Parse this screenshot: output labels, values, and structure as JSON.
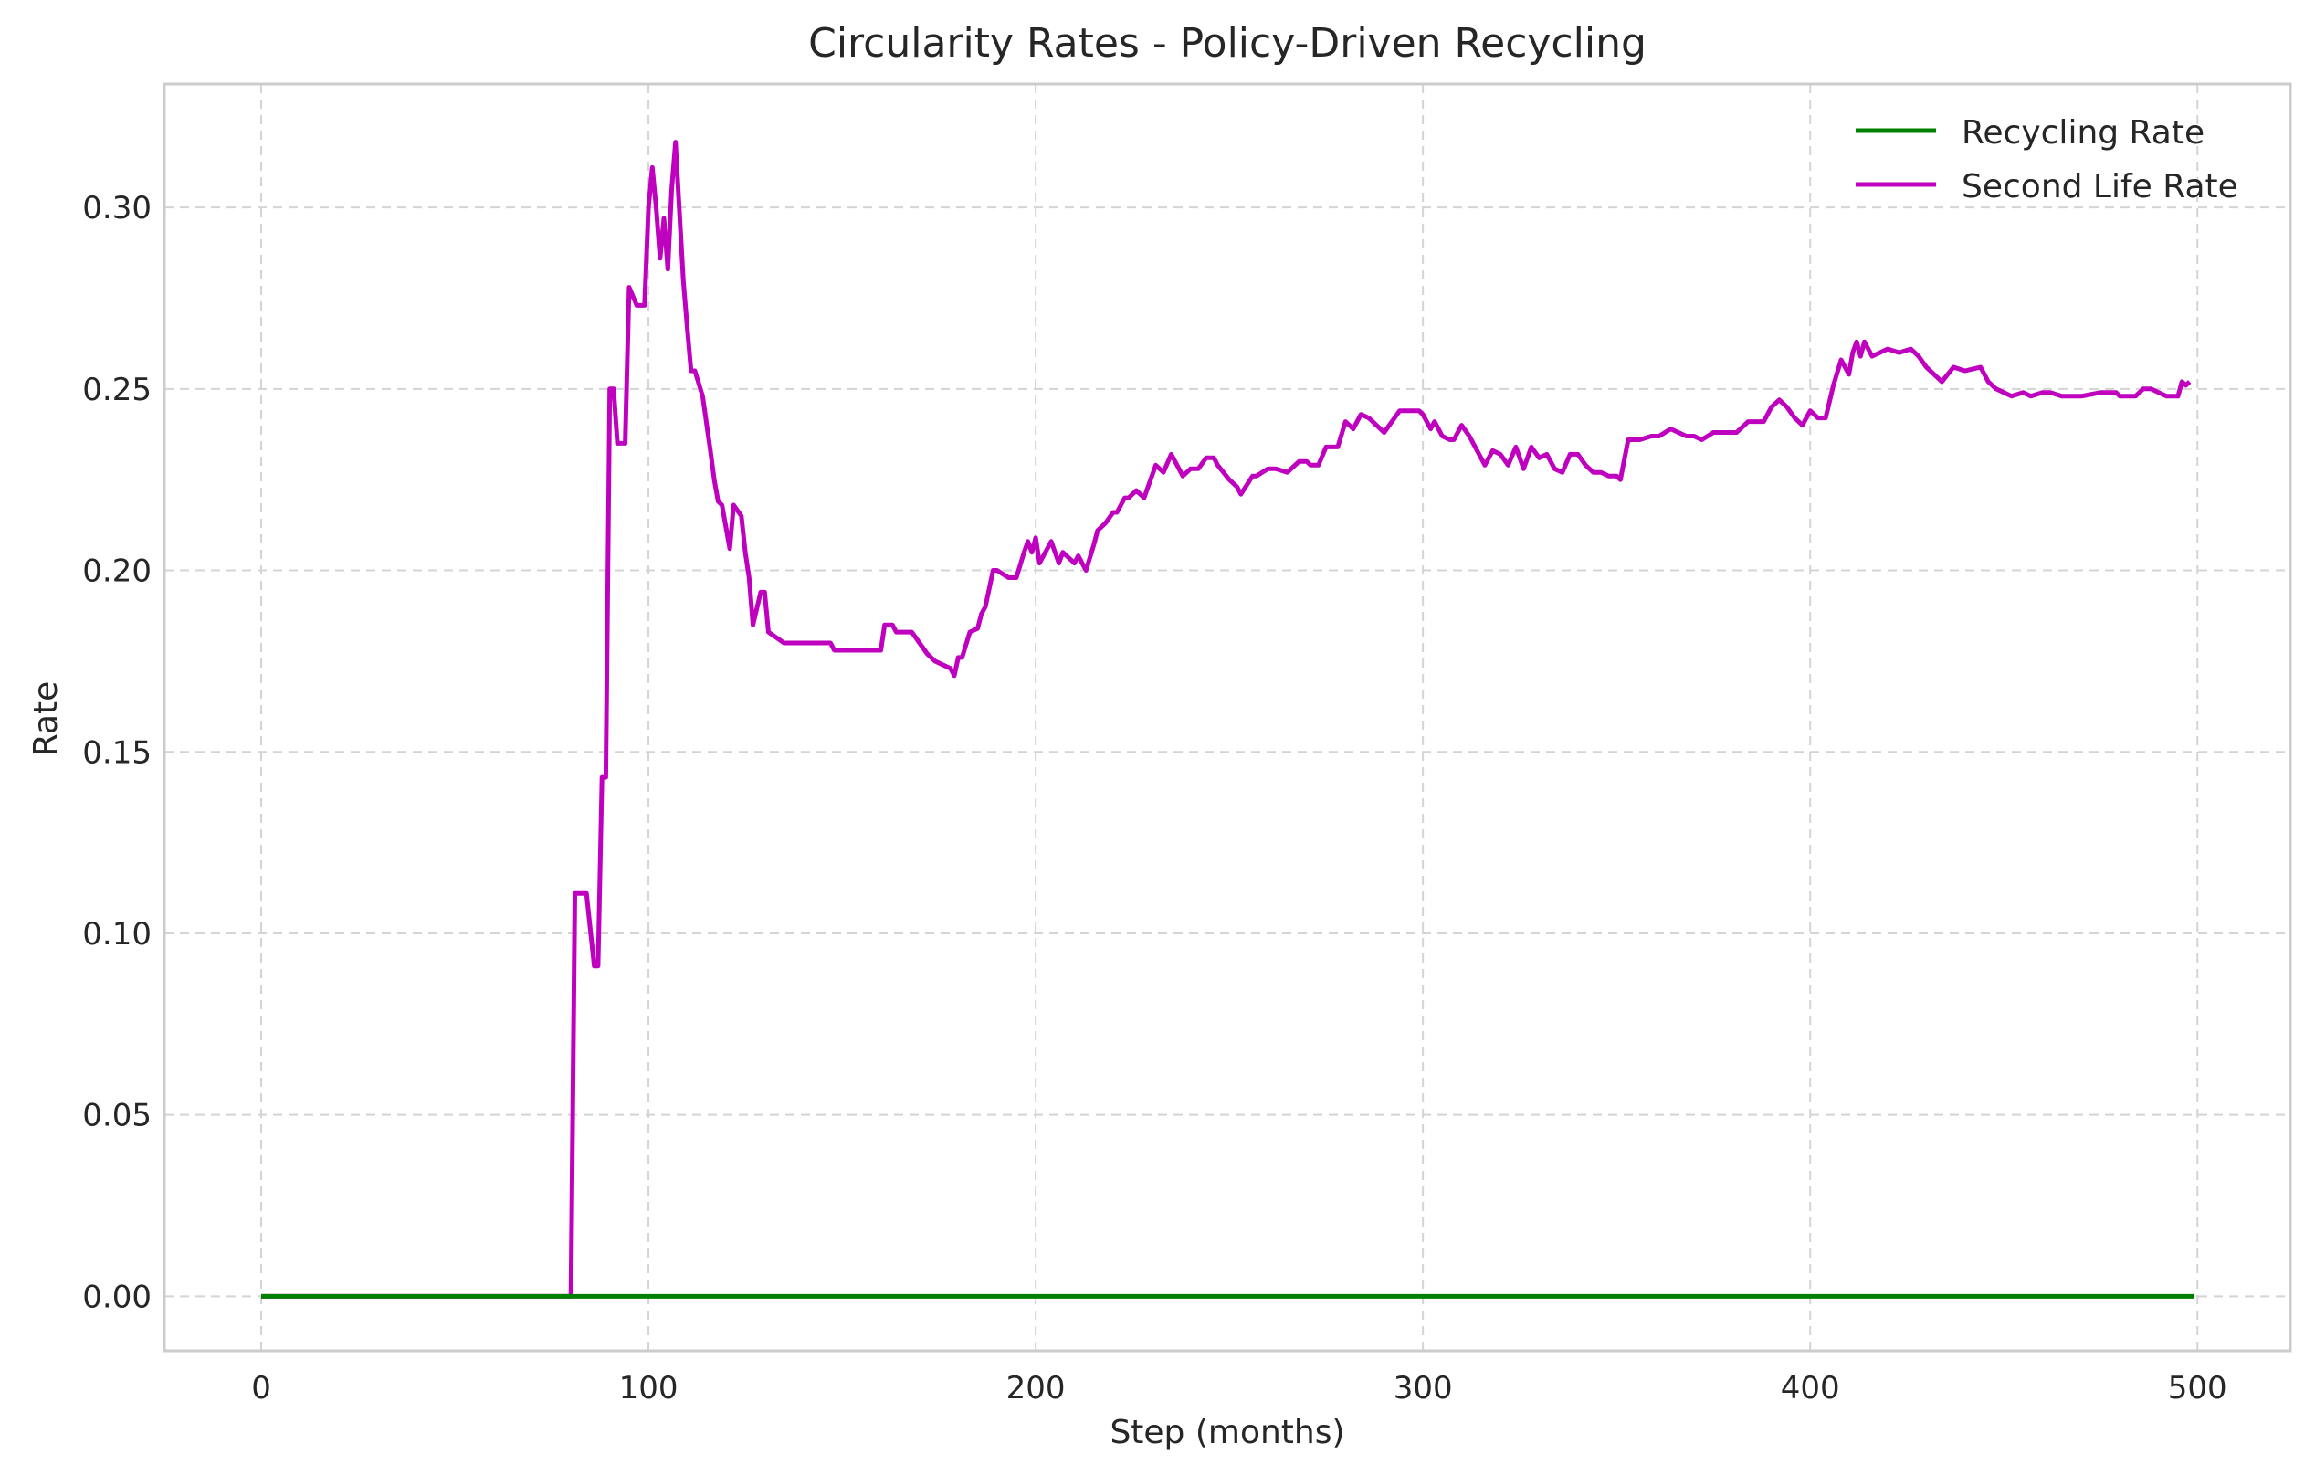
{
  "chart_data": {
    "type": "line",
    "title": "Circularity Rates - Policy-Driven Recycling",
    "xlabel": "Step (months)",
    "ylabel": "Rate",
    "xlim": [
      -25,
      524
    ],
    "ylim": [
      -0.015,
      0.334
    ],
    "xticks": [
      0,
      100,
      200,
      300,
      400,
      500
    ],
    "yticks": [
      0.0,
      0.05,
      0.1,
      0.15,
      0.2,
      0.25,
      0.3
    ],
    "ytick_labels": [
      "0.00",
      "0.05",
      "0.10",
      "0.15",
      "0.20",
      "0.25",
      "0.30"
    ],
    "grid": true,
    "legend_position": "top-right",
    "series": [
      {
        "name": "Recycling Rate",
        "color": "#008000",
        "x": [
          0,
          499
        ],
        "y": [
          0.0,
          0.0
        ]
      },
      {
        "name": "Second Life Rate",
        "color": "#bf00bf",
        "x": [
          0,
          80,
          81,
          82,
          84,
          86,
          87,
          88,
          89,
          90,
          91,
          92,
          93,
          94,
          95,
          97,
          99,
          100,
          101,
          102,
          103,
          104,
          105,
          106,
          107,
          109,
          110,
          111,
          112,
          114,
          116,
          117,
          118,
          119,
          121,
          122,
          124,
          125,
          126,
          127,
          129,
          130,
          131,
          135,
          140,
          147,
          148,
          160,
          161,
          163,
          164,
          168,
          170,
          172,
          174,
          176,
          178,
          179,
          180,
          181,
          183,
          185,
          186,
          187,
          189,
          190,
          193,
          195,
          197,
          198,
          199,
          200,
          201,
          204,
          206,
          207,
          208,
          210,
          211,
          213,
          215,
          216,
          218,
          220,
          221,
          223,
          224,
          226,
          228,
          229,
          231,
          233,
          235,
          236,
          238,
          240,
          242,
          244,
          246,
          247,
          250,
          252,
          253,
          256,
          257,
          260,
          262,
          265,
          268,
          270,
          271,
          272,
          273,
          275,
          278,
          280,
          282,
          284,
          286,
          288,
          290,
          292,
          294,
          297,
          299,
          300,
          302,
          303,
          305,
          307,
          308,
          310,
          312,
          314,
          316,
          318,
          320,
          322,
          324,
          326,
          328,
          330,
          332,
          334,
          336,
          338,
          340,
          342,
          344,
          346,
          348,
          350,
          351,
          353,
          356,
          359,
          361,
          364,
          368,
          370,
          372,
          375,
          378,
          381,
          384,
          386,
          388,
          390,
          392,
          394,
          396,
          398,
          400,
          402,
          404,
          406,
          408,
          410,
          411,
          412,
          413,
          414,
          416,
          418,
          420,
          423,
          426,
          428,
          430,
          432,
          434,
          437,
          440,
          444,
          446,
          448,
          450,
          452,
          455,
          457,
          460,
          462,
          465,
          470,
          475,
          479,
          480,
          484,
          486,
          488,
          490,
          492,
          495,
          496,
          497,
          498
        ],
        "y": [
          0.0,
          0.0,
          0.111,
          0.111,
          0.111,
          0.091,
          0.091,
          0.143,
          0.143,
          0.25,
          0.25,
          0.235,
          0.235,
          0.235,
          0.278,
          0.273,
          0.273,
          0.3,
          0.311,
          0.3,
          0.286,
          0.297,
          0.283,
          0.305,
          0.318,
          0.28,
          0.267,
          0.255,
          0.255,
          0.248,
          0.233,
          0.225,
          0.219,
          0.218,
          0.206,
          0.218,
          0.215,
          0.205,
          0.198,
          0.185,
          0.194,
          0.194,
          0.183,
          0.18,
          0.18,
          0.18,
          0.178,
          0.178,
          0.185,
          0.185,
          0.183,
          0.183,
          0.18,
          0.177,
          0.175,
          0.174,
          0.173,
          0.171,
          0.176,
          0.176,
          0.183,
          0.184,
          0.188,
          0.19,
          0.2,
          0.2,
          0.198,
          0.198,
          0.205,
          0.208,
          0.205,
          0.209,
          0.202,
          0.208,
          0.202,
          0.205,
          0.204,
          0.202,
          0.204,
          0.2,
          0.207,
          0.211,
          0.213,
          0.216,
          0.216,
          0.22,
          0.22,
          0.222,
          0.22,
          0.223,
          0.229,
          0.227,
          0.232,
          0.23,
          0.226,
          0.228,
          0.228,
          0.231,
          0.231,
          0.229,
          0.225,
          0.223,
          0.221,
          0.226,
          0.226,
          0.228,
          0.228,
          0.227,
          0.23,
          0.23,
          0.229,
          0.229,
          0.229,
          0.234,
          0.234,
          0.241,
          0.239,
          0.243,
          0.242,
          0.24,
          0.238,
          0.241,
          0.244,
          0.244,
          0.244,
          0.243,
          0.239,
          0.241,
          0.237,
          0.236,
          0.236,
          0.24,
          0.237,
          0.233,
          0.229,
          0.233,
          0.232,
          0.229,
          0.234,
          0.228,
          0.234,
          0.231,
          0.232,
          0.228,
          0.227,
          0.232,
          0.232,
          0.229,
          0.227,
          0.227,
          0.226,
          0.226,
          0.225,
          0.236,
          0.236,
          0.237,
          0.237,
          0.239,
          0.237,
          0.237,
          0.236,
          0.238,
          0.238,
          0.238,
          0.241,
          0.241,
          0.241,
          0.245,
          0.247,
          0.245,
          0.242,
          0.24,
          0.244,
          0.242,
          0.242,
          0.251,
          0.258,
          0.254,
          0.26,
          0.263,
          0.259,
          0.263,
          0.259,
          0.26,
          0.261,
          0.26,
          0.261,
          0.259,
          0.256,
          0.254,
          0.252,
          0.256,
          0.255,
          0.256,
          0.252,
          0.25,
          0.249,
          0.248,
          0.249,
          0.248,
          0.249,
          0.249,
          0.248,
          0.248,
          0.249,
          0.249,
          0.248,
          0.248,
          0.25,
          0.25,
          0.249,
          0.248,
          0.248,
          0.252,
          0.251,
          0.252
        ]
      }
    ]
  }
}
